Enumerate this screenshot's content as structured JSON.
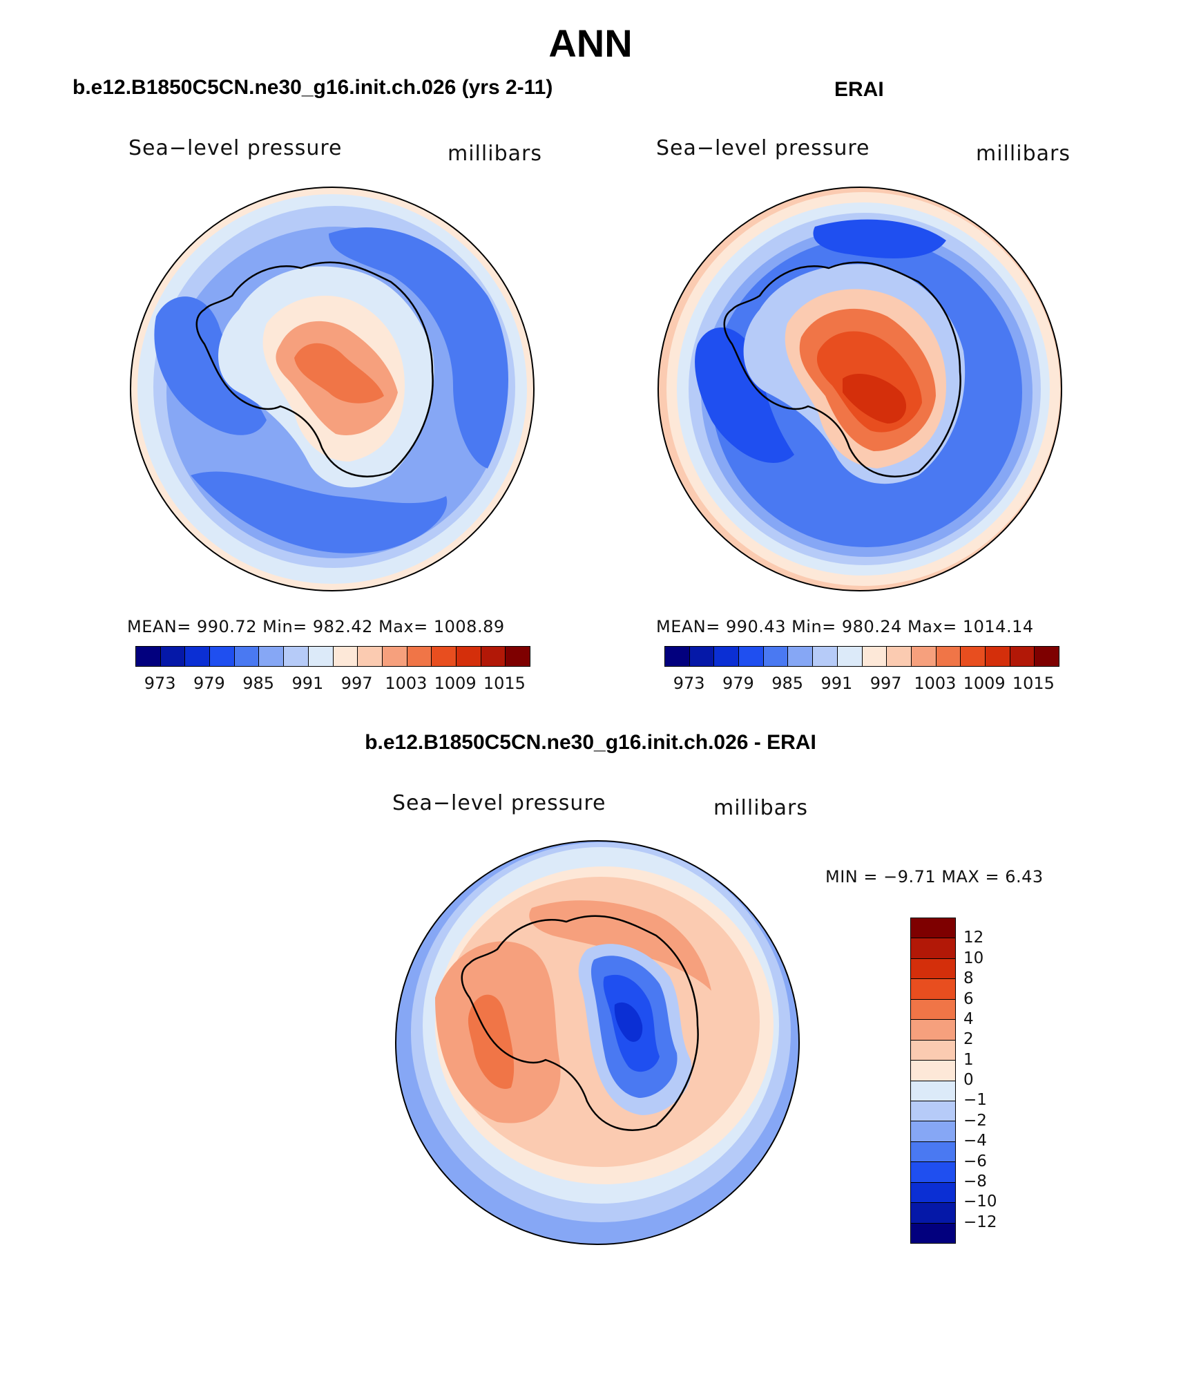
{
  "title": "ANN",
  "panels": {
    "model": {
      "case_title": "b.e12.B1850C5CN.ne30_g16.init.ch.026 (yrs 2-11)",
      "variable": "Sea−level pressure",
      "units": "millibars",
      "stats": "MEAN= 990.72   Min= 982.42   Max= 1008.89"
    },
    "obs": {
      "case_title": "ERAI",
      "variable": "Sea−level pressure",
      "units": "millibars",
      "stats": "MEAN= 990.43   Min= 980.24   Max= 1014.14"
    },
    "diff": {
      "case_title": "b.e12.B1850C5CN.ne30_g16.init.ch.026 - ERAI",
      "variable": "Sea−level pressure",
      "units": "millibars",
      "stats": "MIN =   −9.71  MAX =     6.43"
    }
  },
  "colorbars": {
    "absolute": {
      "ticks": [
        "973",
        "979",
        "985",
        "991",
        "997",
        "1003",
        "1009",
        "1015"
      ],
      "colors": [
        "#02007e",
        "#0518a8",
        "#0b2fd4",
        "#1f4ff0",
        "#4a79f2",
        "#86a7f5",
        "#b6cbf8",
        "#dceaf9",
        "#fde8d8",
        "#fbcbb1",
        "#f6a07d",
        "#f07547",
        "#e84e1f",
        "#d42f0b",
        "#b21807",
        "#7e0000"
      ]
    },
    "difference": {
      "ticks": [
        "12",
        "10",
        "8",
        "6",
        "4",
        "2",
        "1",
        "0",
        "−1",
        "−2",
        "−4",
        "−6",
        "−8",
        "−10",
        "−12"
      ],
      "colors": [
        "#7e0000",
        "#b21807",
        "#d42f0b",
        "#e84e1f",
        "#f07547",
        "#f6a07d",
        "#fbcbb1",
        "#fde8d8",
        "#dceaf9",
        "#b6cbf8",
        "#86a7f5",
        "#4a79f2",
        "#1f4ff0",
        "#0b2fd4",
        "#0518a8",
        "#02007e"
      ]
    }
  }
}
